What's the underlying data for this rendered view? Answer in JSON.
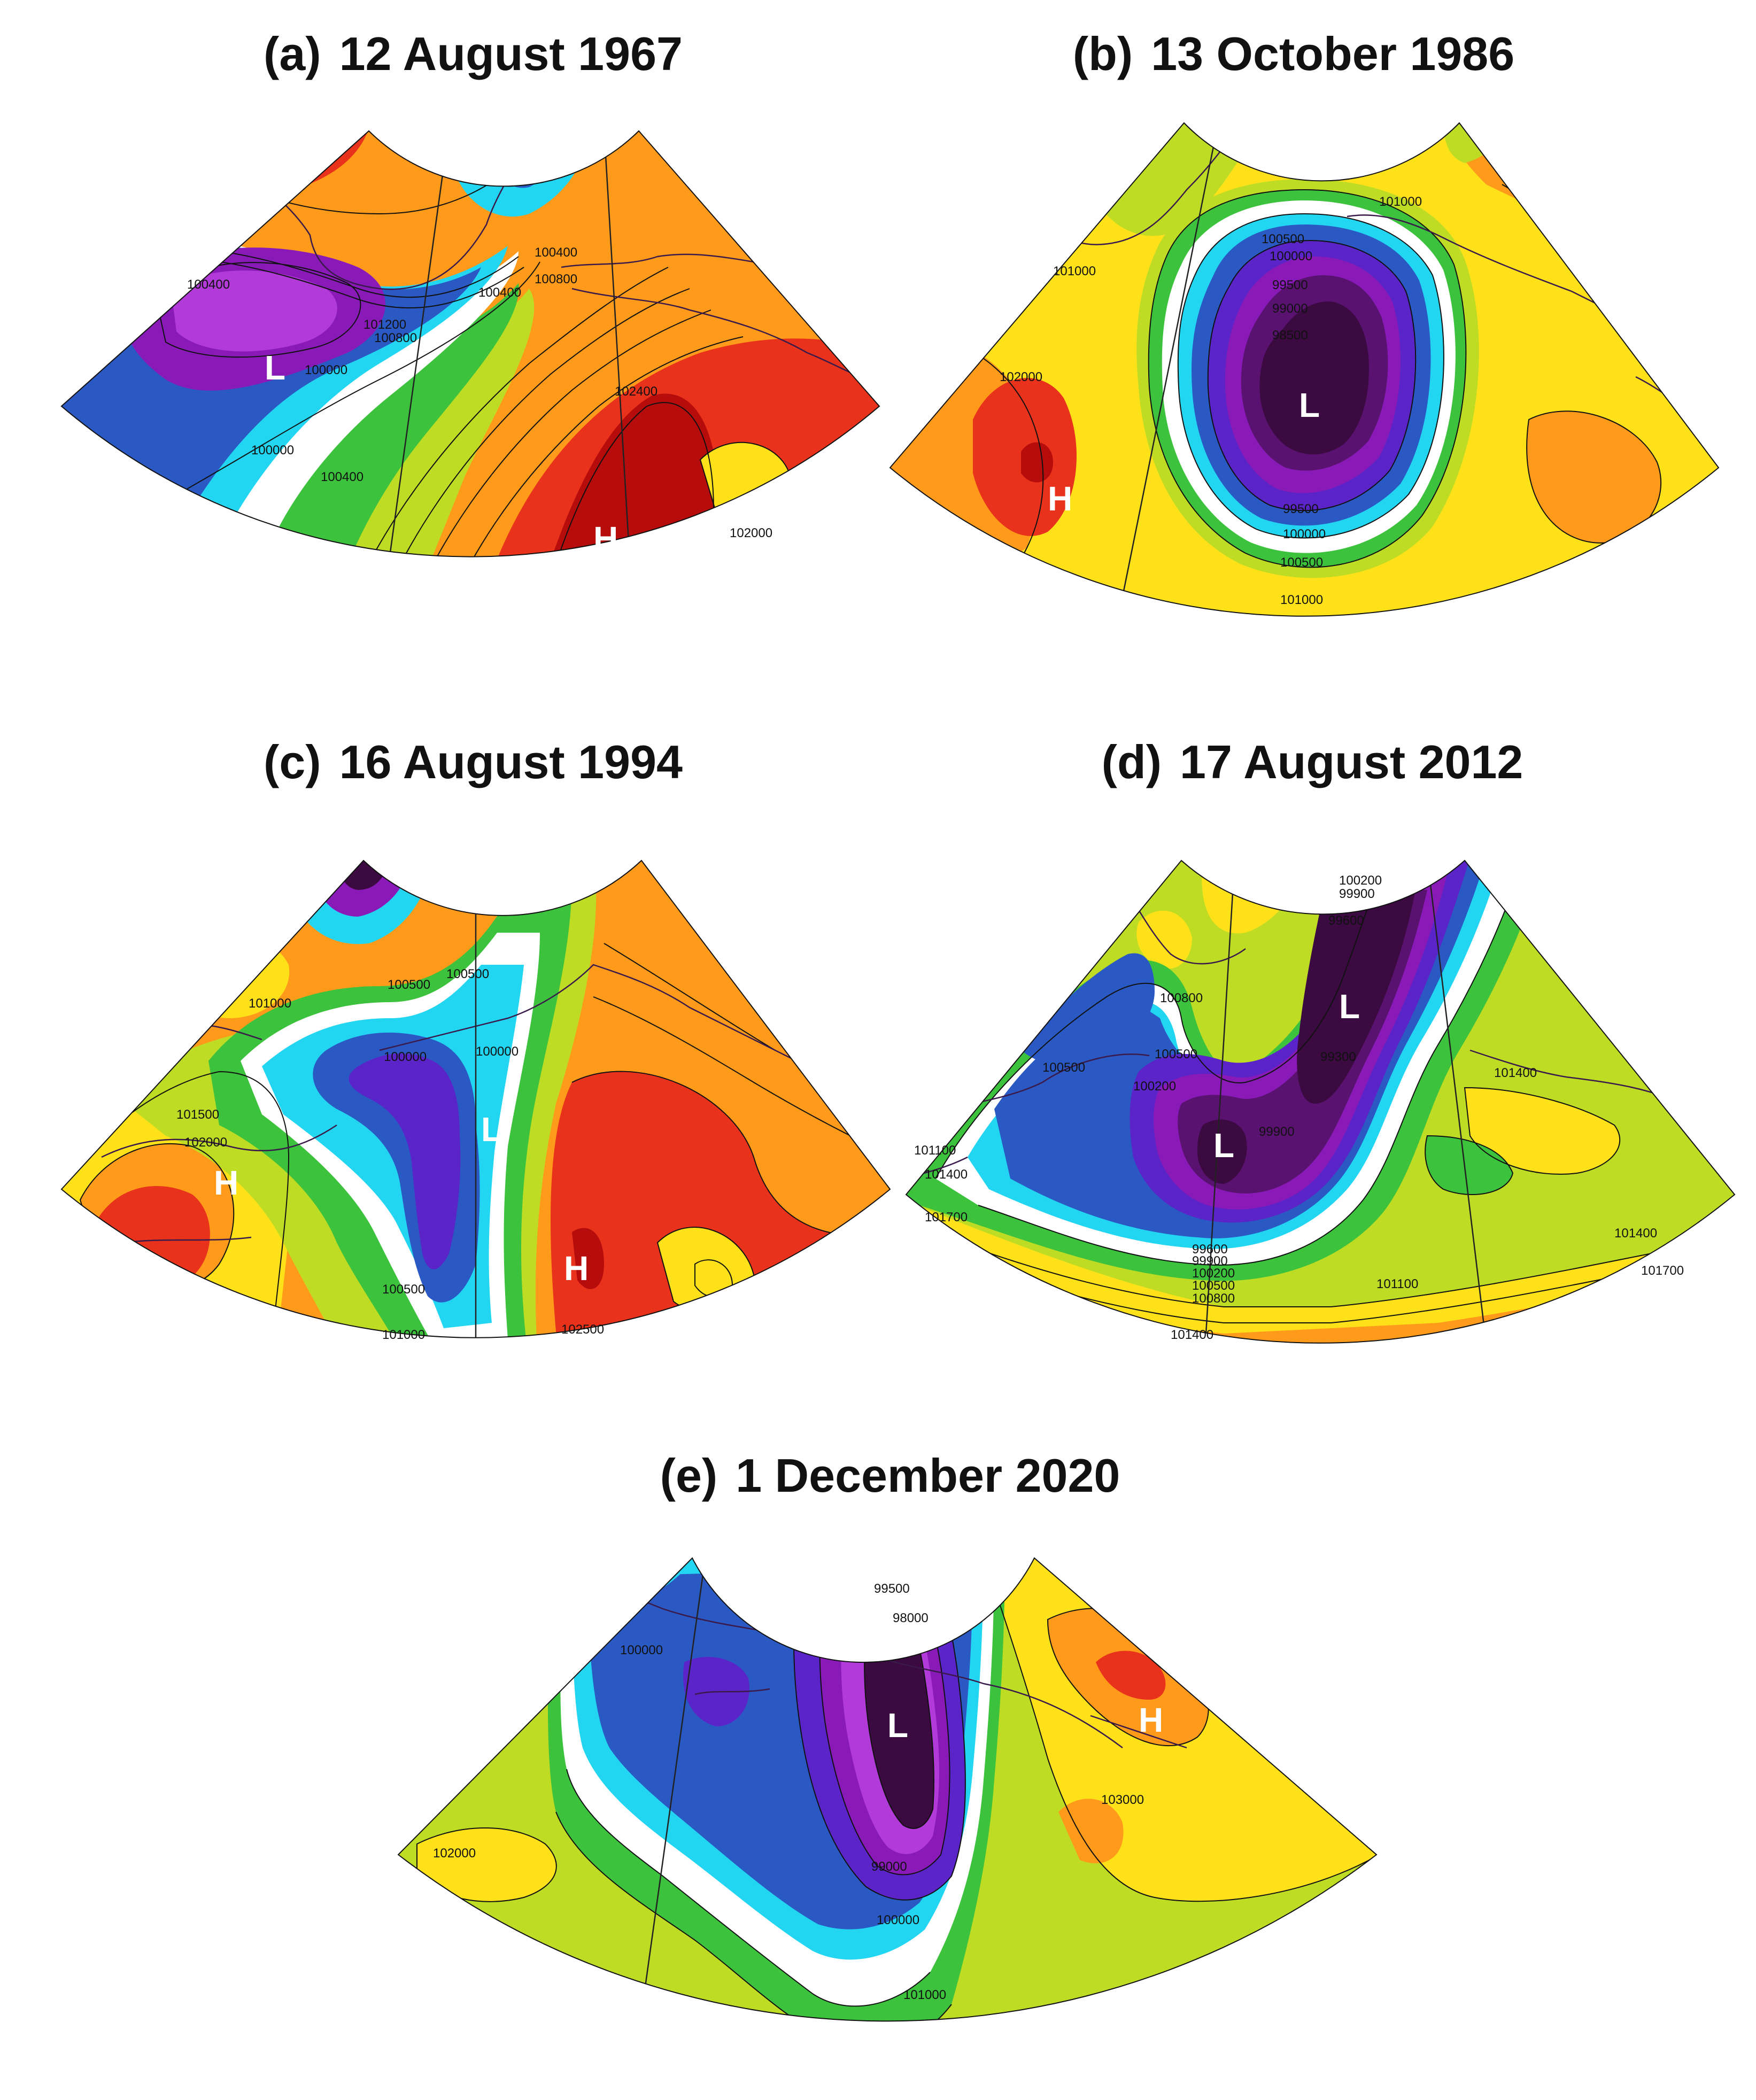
{
  "panels": [
    {
      "id": "a",
      "tag": "(a)",
      "date": "12 August 1967",
      "centers": [
        {
          "type": "L",
          "text": "L"
        },
        {
          "type": "H",
          "text": "H"
        }
      ],
      "isobar_labels": [
        "101200",
        "100800",
        "100400",
        "100800",
        "100400",
        "100400",
        "100000",
        "100000",
        "100400",
        "102400",
        "102000"
      ]
    },
    {
      "id": "b",
      "tag": "(b)",
      "date": "13 October 1986",
      "centers": [
        {
          "type": "L",
          "text": "L"
        },
        {
          "type": "H",
          "text": "H"
        }
      ],
      "isobar_labels": [
        "101000",
        "100500",
        "100000",
        "99500",
        "99000",
        "98500",
        "101000",
        "102000",
        "99500",
        "100000",
        "100500",
        "101000"
      ]
    },
    {
      "id": "c",
      "tag": "(c)",
      "date": "16 August 1994",
      "centers": [
        {
          "type": "L",
          "text": "L"
        },
        {
          "type": "H",
          "text": "H"
        },
        {
          "type": "H",
          "text": "H"
        }
      ],
      "isobar_labels": [
        "100500",
        "101000",
        "100500",
        "100000",
        "100000",
        "101500",
        "102000",
        "100500",
        "101000",
        "102500"
      ]
    },
    {
      "id": "d",
      "tag": "(d)",
      "date": "17 August 2012",
      "centers": [
        {
          "type": "L",
          "text": "L"
        },
        {
          "type": "L",
          "text": "L"
        }
      ],
      "isobar_labels": [
        "100200",
        "99900",
        "99600",
        "100800",
        "99300",
        "100500",
        "100500",
        "100200",
        "99900",
        "101400",
        "101100",
        "101400",
        "101700",
        "99600",
        "99900",
        "100200",
        "100500",
        "100800",
        "101100",
        "101400",
        "101700",
        "101400"
      ]
    },
    {
      "id": "e",
      "tag": "(e)",
      "date": "1 December 2020",
      "centers": [
        {
          "type": "L",
          "text": "L"
        },
        {
          "type": "H",
          "text": "H"
        }
      ],
      "isobar_labels": [
        "99500",
        "98000",
        "100000",
        "102000",
        "99000",
        "100000",
        "101000",
        "103000"
      ]
    }
  ],
  "colors": {
    "deep_low": "#3a0a40",
    "low": "#8a1ab8",
    "blue": "#2b59c3",
    "cyan": "#22d6f2",
    "white": "#ffffff",
    "green": "#3cc23c",
    "yellow_green": "#bfdc25",
    "yellow": "#ffe11a",
    "orange": "#ff9a1a",
    "red": "#e8321c",
    "dark_red": "#b60c0c"
  }
}
